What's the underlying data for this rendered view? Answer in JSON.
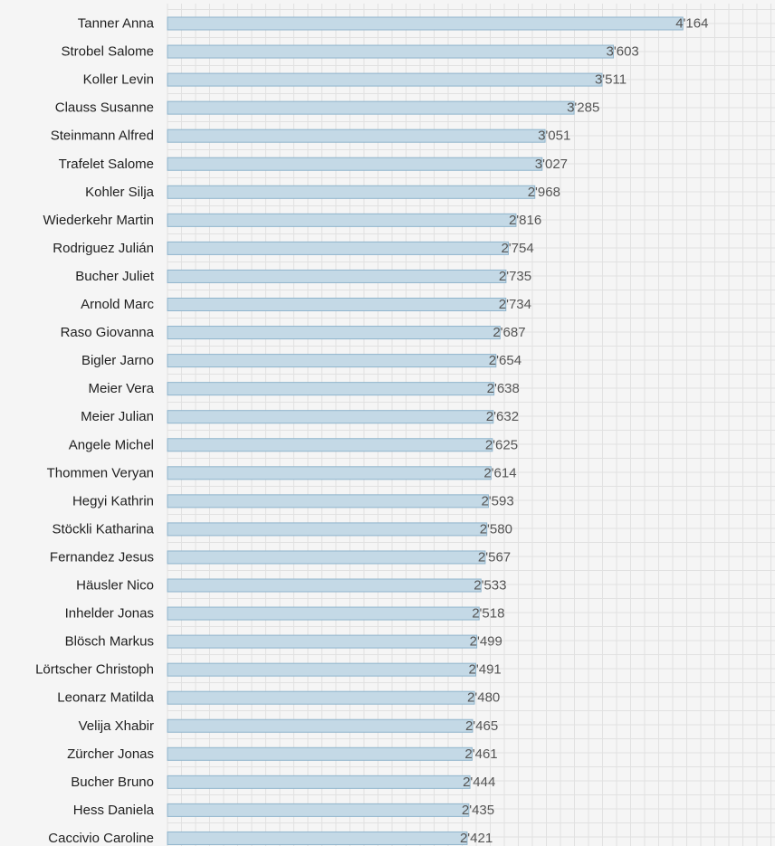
{
  "chart_data": {
    "type": "bar",
    "orientation": "horizontal",
    "categories": [
      "Tanner Anna",
      "Strobel Salome",
      "Koller Levin",
      "Clauss Susanne",
      "Steinmann Alfred",
      "Trafelet Salome",
      "Kohler Silja",
      "Wiederkehr Martin",
      "Rodriguez Julián",
      "Bucher Juliet",
      "Arnold Marc",
      "Raso Giovanna",
      "Bigler Jarno",
      "Meier Vera",
      "Meier Julian",
      "Angele Michel",
      "Thommen Veryan",
      "Hegyi Kathrin",
      "Stöckli Katharina",
      "Fernandez Jesus",
      "Häusler Nico",
      "Inhelder Jonas",
      "Blösch Markus",
      "Lörtscher Christoph",
      "Leonarz Matilda",
      "Velija Xhabir",
      "Zürcher Jonas",
      "Bucher Bruno",
      "Hess Daniela",
      "Caccivio Caroline"
    ],
    "values": [
      4164,
      3603,
      3511,
      3285,
      3051,
      3027,
      2968,
      2816,
      2754,
      2735,
      2734,
      2687,
      2654,
      2638,
      2632,
      2625,
      2614,
      2593,
      2580,
      2567,
      2533,
      2518,
      2499,
      2491,
      2480,
      2465,
      2461,
      2444,
      2435,
      2421
    ],
    "value_labels": [
      "4'164",
      "3'603",
      "3'511",
      "3'285",
      "3'051",
      "3'027",
      "2'968",
      "2'816",
      "2'754",
      "2'735",
      "2'734",
      "2'687",
      "2'654",
      "2'638",
      "2'632",
      "2'625",
      "2'614",
      "2'593",
      "2'580",
      "2'567",
      "2'533",
      "2'518",
      "2'499",
      "2'491",
      "2'480",
      "2'465",
      "2'461",
      "2'444",
      "2'435",
      "2'421"
    ],
    "xlim": [
      0,
      4850
    ],
    "grid": true,
    "bar_color": "#c4d9e6",
    "bar_border_color": "#8fb4cc"
  }
}
